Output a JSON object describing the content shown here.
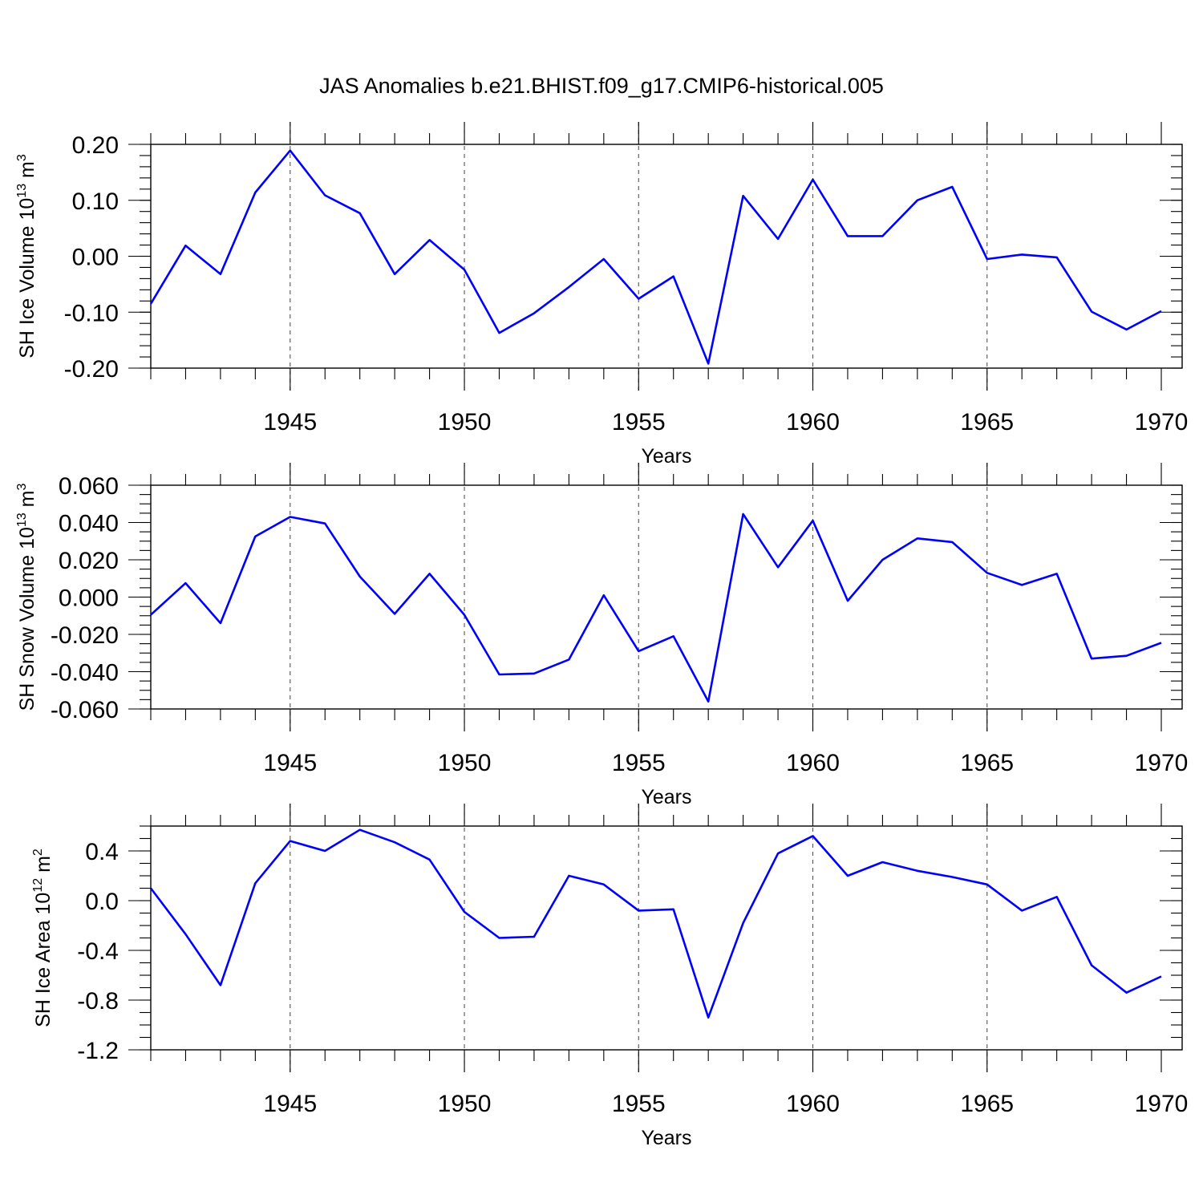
{
  "title": "JAS Anomalies b.e21.BHIST.f09_g17.CMIP6-historical.005",
  "line_color": "#0000ff",
  "chart_data": [
    {
      "type": "line",
      "ylabel": "SH Ice Volume 10",
      "ylabel_exp": "13",
      "ylabel_unit": " m",
      "ylabel_unit_exp": "3",
      "xlabel": "Years",
      "xlim": [
        1941,
        1970
      ],
      "ylim": [
        -0.2,
        0.2
      ],
      "yticks": [
        -0.2,
        -0.1,
        0.0,
        0.1,
        0.2
      ],
      "ytick_labels": [
        "-0.20",
        "-0.10",
        "0.00",
        "0.10",
        "0.20"
      ],
      "xticks": [
        1945,
        1950,
        1955,
        1960,
        1965,
        1970
      ],
      "xtick_labels": [
        "1945",
        "1950",
        "1955",
        "1960",
        "1965",
        "1970"
      ],
      "grid_x": [
        1945,
        1950,
        1955,
        1960,
        1965
      ],
      "x": [
        1941,
        1942,
        1943,
        1944,
        1945,
        1946,
        1947,
        1948,
        1949,
        1950,
        1951,
        1952,
        1953,
        1954,
        1955,
        1956,
        1957,
        1958,
        1959,
        1960,
        1961,
        1962,
        1963,
        1964,
        1965,
        1966,
        1967,
        1968,
        1969,
        1970
      ],
      "y": [
        -0.085,
        0.019,
        -0.032,
        0.114,
        0.189,
        0.109,
        0.077,
        -0.032,
        0.029,
        -0.024,
        -0.137,
        -0.102,
        -0.055,
        -0.005,
        -0.076,
        -0.036,
        -0.192,
        0.108,
        0.031,
        0.137,
        0.036,
        0.036,
        0.1,
        0.124,
        -0.005,
        0.003,
        -0.002,
        -0.099,
        -0.131,
        -0.098
      ]
    },
    {
      "type": "line",
      "ylabel": "SH Snow Volume 10",
      "ylabel_exp": "13",
      "ylabel_unit": " m",
      "ylabel_unit_exp": "3",
      "xlabel": "Years",
      "xlim": [
        1941,
        1970
      ],
      "ylim": [
        -0.06,
        0.06
      ],
      "yticks": [
        -0.06,
        -0.04,
        -0.02,
        0.0,
        0.02,
        0.04,
        0.06
      ],
      "ytick_labels": [
        "-0.060",
        "-0.040",
        "-0.020",
        "0.000",
        "0.020",
        "0.040",
        "0.060"
      ],
      "xticks": [
        1945,
        1950,
        1955,
        1960,
        1965,
        1970
      ],
      "xtick_labels": [
        "1945",
        "1950",
        "1955",
        "1960",
        "1965",
        "1970"
      ],
      "grid_x": [
        1945,
        1950,
        1955,
        1960,
        1965
      ],
      "x": [
        1941,
        1942,
        1943,
        1944,
        1945,
        1946,
        1947,
        1948,
        1949,
        1950,
        1951,
        1952,
        1953,
        1954,
        1955,
        1956,
        1957,
        1958,
        1959,
        1960,
        1961,
        1962,
        1963,
        1964,
        1965,
        1966,
        1967,
        1968,
        1969,
        1970
      ],
      "y": [
        -0.0095,
        0.0075,
        -0.014,
        0.0325,
        0.043,
        0.0395,
        0.011,
        -0.009,
        0.0125,
        -0.0095,
        -0.0415,
        -0.041,
        -0.0335,
        0.001,
        -0.029,
        -0.021,
        -0.056,
        0.0445,
        0.016,
        0.041,
        -0.002,
        0.02,
        0.0315,
        0.0295,
        0.013,
        0.0065,
        0.0125,
        -0.033,
        -0.0315,
        -0.0245
      ]
    },
    {
      "type": "line",
      "ylabel": "SH Ice Area 10",
      "ylabel_exp": "12",
      "ylabel_unit": " m",
      "ylabel_unit_exp": "2",
      "xlabel": "Years",
      "xlim": [
        1941,
        1970
      ],
      "ylim": [
        -1.2,
        0.6
      ],
      "yticks": [
        -1.2,
        -0.8,
        -0.4,
        0.0,
        0.4
      ],
      "ytick_labels": [
        "-1.2",
        "-0.8",
        "-0.4",
        "0.0",
        "0.4"
      ],
      "xticks": [
        1945,
        1950,
        1955,
        1960,
        1965,
        1970
      ],
      "xtick_labels": [
        "1945",
        "1950",
        "1955",
        "1960",
        "1965",
        "1970"
      ],
      "grid_x": [
        1945,
        1950,
        1955,
        1960,
        1965
      ],
      "x": [
        1941,
        1942,
        1943,
        1944,
        1945,
        1946,
        1947,
        1948,
        1949,
        1950,
        1951,
        1952,
        1953,
        1954,
        1955,
        1956,
        1957,
        1958,
        1959,
        1960,
        1961,
        1962,
        1963,
        1964,
        1965,
        1966,
        1967,
        1968,
        1969,
        1970
      ],
      "y": [
        0.1,
        -0.27,
        -0.68,
        0.14,
        0.48,
        0.4,
        0.57,
        0.47,
        0.33,
        -0.09,
        -0.3,
        -0.29,
        0.2,
        0.13,
        -0.08,
        -0.07,
        -0.94,
        -0.18,
        0.38,
        0.52,
        0.2,
        0.31,
        0.24,
        0.19,
        0.13,
        -0.08,
        0.03,
        -0.52,
        -0.74,
        -0.61
      ]
    }
  ]
}
